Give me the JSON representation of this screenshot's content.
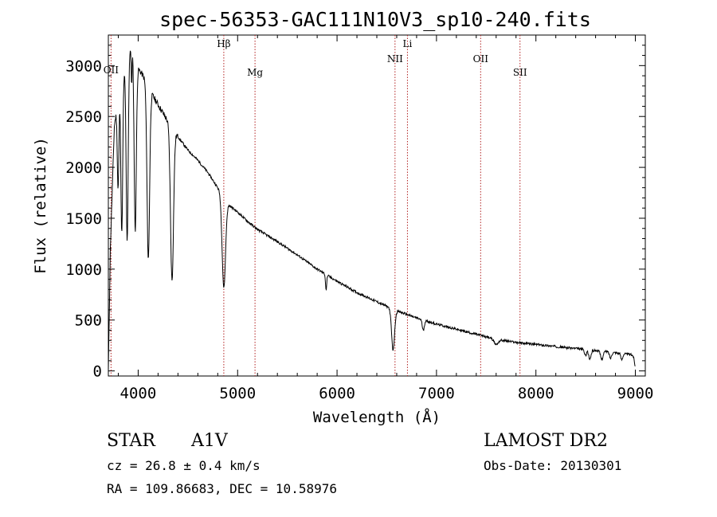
{
  "chart_data": {
    "type": "line",
    "title": "spec-56353-GAC111N10V3_sp10-240.fits",
    "xlabel": "Wavelength (Å)",
    "ylabel": "Flux (relative)",
    "xlim": [
      3700,
      9100
    ],
    "ylim": [
      -50,
      3300
    ],
    "xticks": [
      4000,
      5000,
      6000,
      7000,
      8000,
      9000
    ],
    "yticks": [
      0,
      500,
      1000,
      1500,
      2000,
      2500,
      3000
    ],
    "grid": false,
    "series_color": "#000000",
    "line_color": "#b22222",
    "lines": [
      {
        "name": "OII",
        "x": 3727
      },
      {
        "name": "Hβ",
        "x": 4861
      },
      {
        "name": "Mg",
        "x": 5175
      },
      {
        "name": "NII",
        "x": 6583
      },
      {
        "name": "Li",
        "x": 6708
      },
      {
        "name": "OII",
        "x": 7444
      },
      {
        "name": "SII",
        "x": 7840
      }
    ],
    "continuum": [
      [
        3700,
        0
      ],
      [
        3720,
        1200
      ],
      [
        3760,
        2400
      ],
      [
        3800,
        2700
      ],
      [
        3850,
        2900
      ],
      [
        3900,
        3100
      ],
      [
        3940,
        3250
      ],
      [
        3980,
        3000
      ],
      [
        4050,
        2900
      ],
      [
        4150,
        2700
      ],
      [
        4300,
        2450
      ],
      [
        4400,
        2300
      ],
      [
        4500,
        2170
      ],
      [
        4600,
        2070
      ],
      [
        4700,
        1950
      ],
      [
        4800,
        1800
      ],
      [
        4860,
        1720
      ],
      [
        4900,
        1640
      ],
      [
        4950,
        1600
      ],
      [
        5000,
        1560
      ],
      [
        5100,
        1470
      ],
      [
        5200,
        1390
      ],
      [
        5400,
        1270
      ],
      [
        5600,
        1140
      ],
      [
        5800,
        1000
      ],
      [
        6000,
        880
      ],
      [
        6200,
        770
      ],
      [
        6400,
        680
      ],
      [
        6600,
        590
      ],
      [
        6800,
        520
      ],
      [
        7000,
        460
      ],
      [
        7200,
        410
      ],
      [
        7400,
        360
      ],
      [
        7600,
        310
      ],
      [
        7800,
        280
      ],
      [
        8000,
        260
      ],
      [
        8200,
        240
      ],
      [
        8400,
        220
      ],
      [
        8600,
        200
      ],
      [
        8800,
        180
      ],
      [
        8950,
        160
      ],
      [
        9000,
        150
      ]
    ],
    "absorption": [
      {
        "x": 3798,
        "depth": 900,
        "width": 8
      },
      {
        "x": 3835,
        "depth": 1500,
        "width": 9
      },
      {
        "x": 3889,
        "depth": 1800,
        "width": 10
      },
      {
        "x": 3934,
        "depth": 400,
        "width": 5
      },
      {
        "x": 3970,
        "depth": 1700,
        "width": 11
      },
      {
        "x": 4102,
        "depth": 1700,
        "width": 13
      },
      {
        "x": 4340,
        "depth": 1500,
        "width": 15
      },
      {
        "x": 4861,
        "depth": 900,
        "width": 17
      },
      {
        "x": 5890,
        "depth": 150,
        "width": 6
      },
      {
        "x": 6563,
        "depth": 400,
        "width": 15
      },
      {
        "x": 6867,
        "depth": 100,
        "width": 10
      },
      {
        "x": 7600,
        "depth": 50,
        "width": 20
      },
      {
        "x": 8498,
        "depth": 60,
        "width": 10
      },
      {
        "x": 8542,
        "depth": 90,
        "width": 12
      },
      {
        "x": 8662,
        "depth": 80,
        "width": 12
      },
      {
        "x": 8750,
        "depth": 60,
        "width": 10
      },
      {
        "x": 8863,
        "depth": 60,
        "width": 10
      },
      {
        "x": 9000,
        "depth": 100,
        "width": 10
      }
    ]
  },
  "info": {
    "class": "STAR",
    "subclass": "A1V",
    "survey": "LAMOST DR2",
    "cz": "cz = 26.8 ± 0.4 km/s",
    "obs_date": "Obs-Date: 20130301",
    "coords": "RA = 109.86683, DEC =  10.58976"
  }
}
